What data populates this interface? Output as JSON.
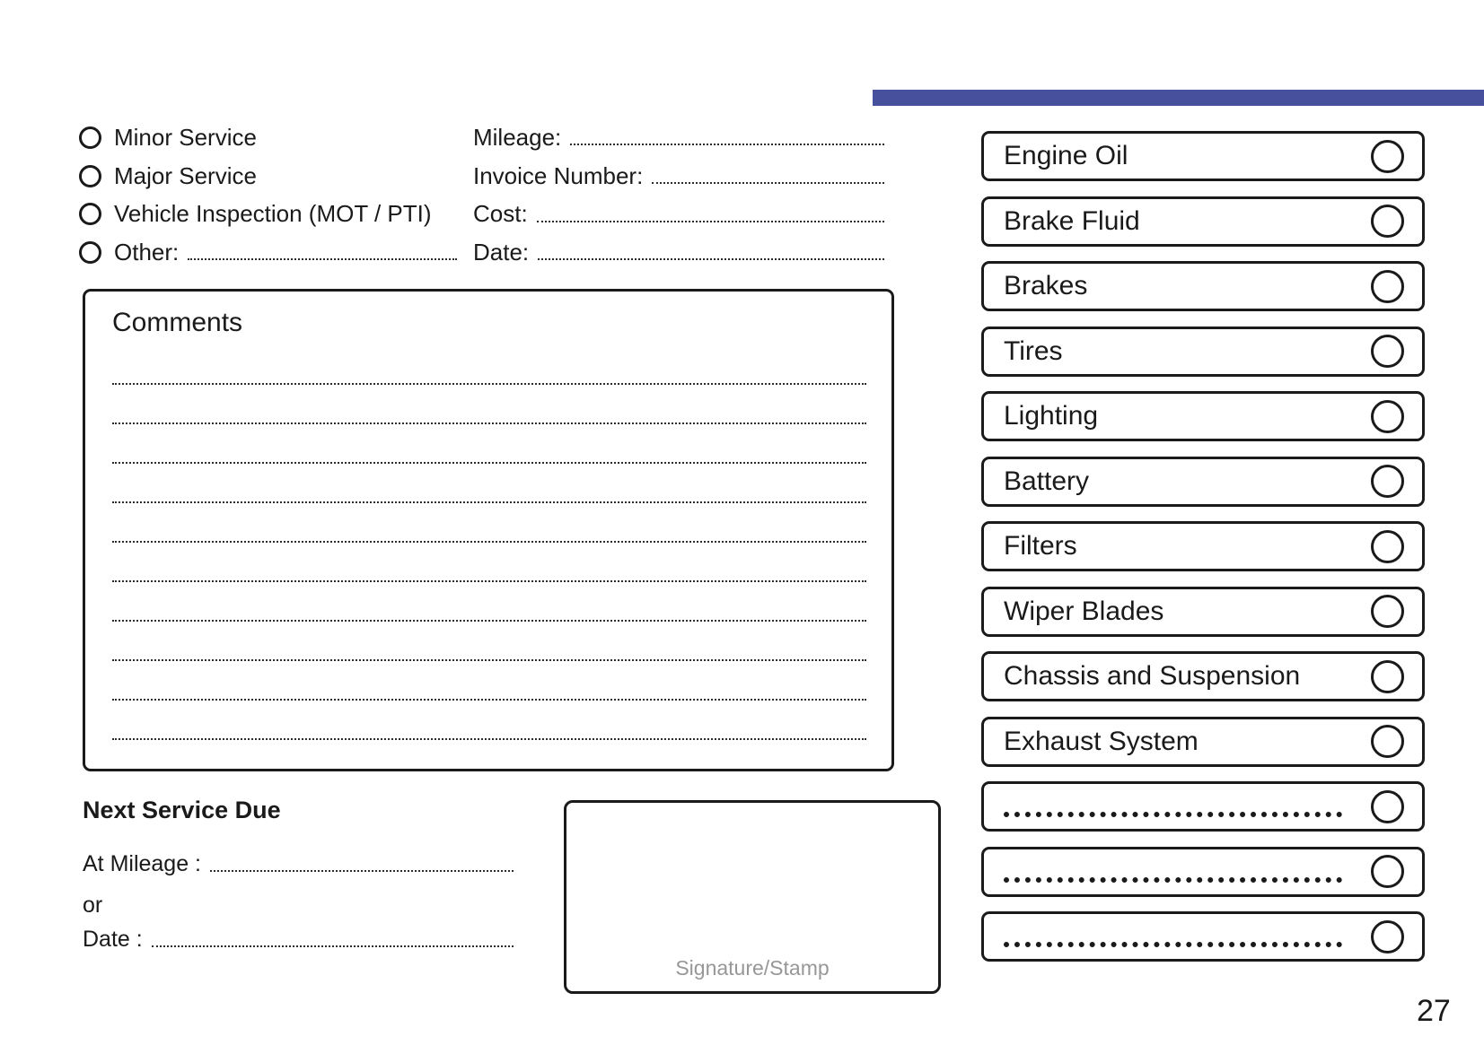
{
  "page": {
    "number": "27",
    "accent_color": "#47509c"
  },
  "service_type": {
    "options": [
      {
        "label": "Minor Service"
      },
      {
        "label": "Major Service"
      },
      {
        "label": "Vehicle Inspection (MOT / PTI)"
      },
      {
        "label": "Other:"
      }
    ]
  },
  "service_details": {
    "fields": [
      {
        "label": "Mileage:"
      },
      {
        "label": "Invoice Number:"
      },
      {
        "label": "Cost:"
      },
      {
        "label": "Date:"
      }
    ]
  },
  "comments": {
    "title": "Comments",
    "line_count": 10
  },
  "next_service": {
    "title": "Next Service Due",
    "at_mileage_label": "At Mileage :",
    "or_label": "or",
    "date_label": "Date :"
  },
  "signature": {
    "placeholder": "Signature/Stamp"
  },
  "checklist": {
    "items": [
      "Engine Oil",
      "Brake Fluid",
      "Brakes",
      "Tires",
      "Lighting",
      "Battery",
      "Filters",
      "Wiper Blades",
      "Chassis and Suspension",
      "Exhaust System",
      "",
      "",
      ""
    ]
  }
}
